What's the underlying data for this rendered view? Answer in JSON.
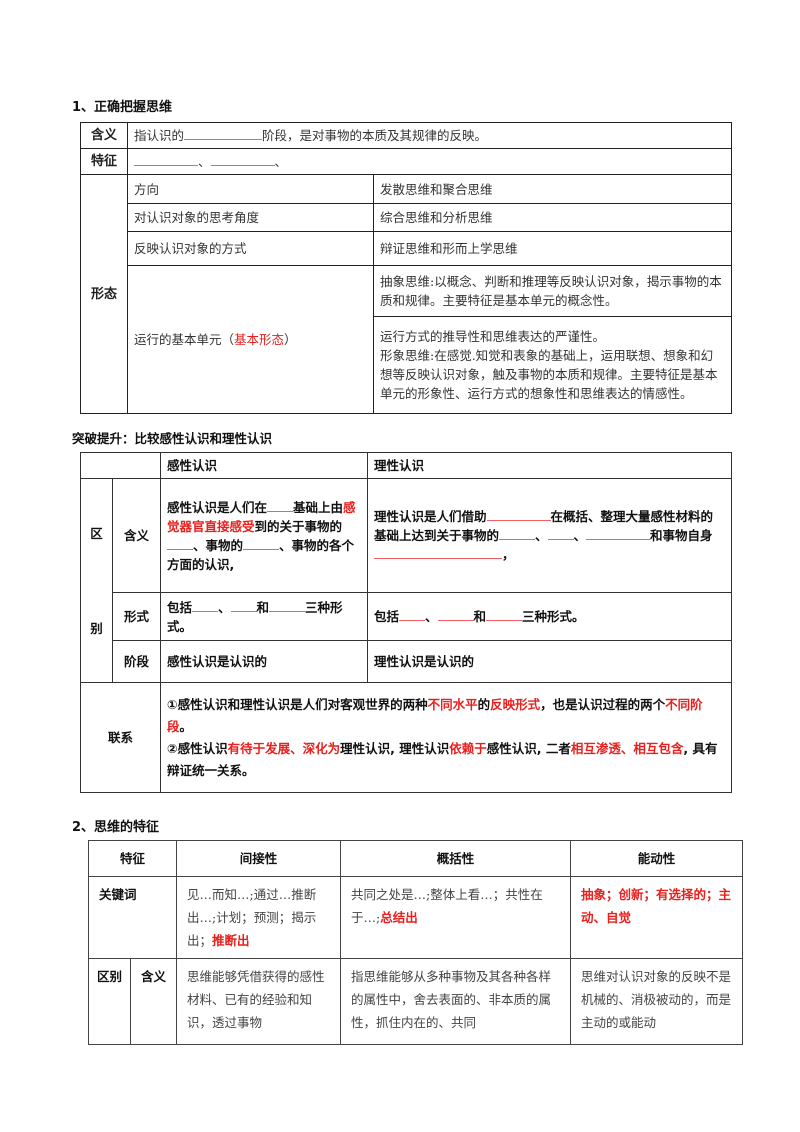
{
  "section1": {
    "title": "1、正确把握思维",
    "meaning_label": "含义",
    "meaning": [
      {
        "t": "指认识的"
      },
      {
        "blank": "xl"
      },
      {
        "t": "阶段，是对事物的本质及其规律的反映。"
      }
    ],
    "features_label": "特征",
    "features": [
      {
        "blank": "l"
      },
      {
        "t": "、"
      },
      {
        "blank": "l"
      },
      {
        "t": "、"
      }
    ],
    "forms_label": "形态",
    "forms": [
      {
        "aspect": "方向",
        "types": "发散思维和聚合思维"
      },
      {
        "aspect": "对认识对象的思考角度",
        "types": "综合思维和分析思维"
      },
      {
        "aspect": "反映认识对象的方式",
        "types": "辩证思维和形而上学思维"
      }
    ],
    "unit_aspect": [
      {
        "t": "运行的基本单元（"
      },
      {
        "t": "基本形态",
        "red": true
      },
      {
        "t": "）"
      }
    ],
    "abstract": [
      {
        "t": "抽象思维:以概念、判断和推理等反映认识对象，揭示事物的本质和规律。主要特征是基本单元的概念性。"
      }
    ],
    "imagery": [
      {
        "t": "运行方式的推导性和思维表达的严谨性。"
      },
      {
        "br": true
      },
      {
        "t": "形象思维:在感觉.知觉和表象的基础上，运用联想、想象和幻想等反映认识对象，触及事物的本质和规律。主要特征是基本单元的形象性、运行方式的想象性和思维表达的情感性。"
      }
    ]
  },
  "section_compare": {
    "title": "突破提升：比较感性认识和理性认识",
    "col_perceptual": "感性认识",
    "col_rational": "理性认识",
    "diff_label_1": "区",
    "diff_label_2": "别",
    "rows": {
      "meaning_label": "含义",
      "meaning_perceptual": [
        {
          "t": "感性认识是人们在"
        },
        {
          "blank": "s"
        },
        {
          "t": "基础上由"
        },
        {
          "t": "感觉器官直接感受",
          "red": true
        },
        {
          "t": "到的关于事物的"
        },
        {
          "blank": "s"
        },
        {
          "t": "、事物的"
        },
        {
          "blank": "m"
        },
        {
          "t": "、事物的各个方面的认识,"
        }
      ],
      "meaning_rational": [
        {
          "t": "理性认识是人们借助"
        },
        {
          "blank": "l"
        },
        {
          "t": "在概括、整理大量感性材料的基础上达到关于事物的"
        },
        {
          "blank": "m"
        },
        {
          "t": "、"
        },
        {
          "blank": "s"
        },
        {
          "t": "、"
        },
        {
          "blank": "l"
        },
        {
          "t": "和事物自身"
        },
        {
          "blank": "xxl"
        },
        {
          "t": "，"
        }
      ],
      "form_label": "形式",
      "form_perceptual": [
        {
          "t": "包括"
        },
        {
          "blank": "s"
        },
        {
          "t": "、"
        },
        {
          "blank": "s"
        },
        {
          "t": "和"
        },
        {
          "blank": "m"
        },
        {
          "t": "三种形式。"
        }
      ],
      "form_rational": [
        {
          "t": "包括"
        },
        {
          "blank": "s"
        },
        {
          "t": "、"
        },
        {
          "blank": "m"
        },
        {
          "t": "和"
        },
        {
          "blank": "m"
        },
        {
          "t": "三种形式。"
        }
      ],
      "stage_label": "阶段",
      "stage_perceptual": "感性认识是认识的",
      "stage_rational": "理性认识是认识的"
    },
    "relation_label": "联系",
    "relation": [
      {
        "t": "①感性认识和理性认识是人们对客观世界的两种"
      },
      {
        "t": "不同水平",
        "red": true
      },
      {
        "t": "的"
      },
      {
        "t": "反映形式",
        "red": true
      },
      {
        "t": "，也是认识过程的两个"
      },
      {
        "t": "不同阶段",
        "red": true
      },
      {
        "t": "。"
      },
      {
        "br": true
      },
      {
        "t": "②感性认识"
      },
      {
        "t": "有待于发展、深化为",
        "red": true
      },
      {
        "t": "理性认识, 理性认识"
      },
      {
        "t": "依赖于",
        "red": true
      },
      {
        "t": "感性认识, 二者"
      },
      {
        "t": "相互渗透、相互包含",
        "red": true
      },
      {
        "t": ", 具有辩证统一关系。"
      }
    ]
  },
  "section2": {
    "title": "2、思维的特征",
    "headers": [
      "特征",
      "间接性",
      "概括性",
      "能动性"
    ],
    "keywords_label": "关键词",
    "keywords": [
      [
        {
          "t": "见…而知…;通过…推断出…;计划；预测；揭示出；"
        },
        {
          "t": "推断出",
          "red": true,
          "bold": true
        }
      ],
      [
        {
          "t": "共同之处是…;整体上看…；共性在于…;"
        },
        {
          "t": "总结出",
          "red": true,
          "bold": true
        }
      ],
      [
        {
          "t": "抽象；创新；有选择的；主动、自觉",
          "red": true,
          "bold": true
        }
      ]
    ],
    "diff_label": "区别",
    "meaning_label": "含义",
    "meanings": [
      "思维能够凭借获得的感性材料、已有的经验和知识，透过事物",
      "指思维能够从多种事物及其各种各样的属性中，舍去表面的、非本质的属性，抓住内在的、共同",
      "思维对认识对象的反映不是机械的、消极被动的，而是主动的或能动"
    ]
  }
}
